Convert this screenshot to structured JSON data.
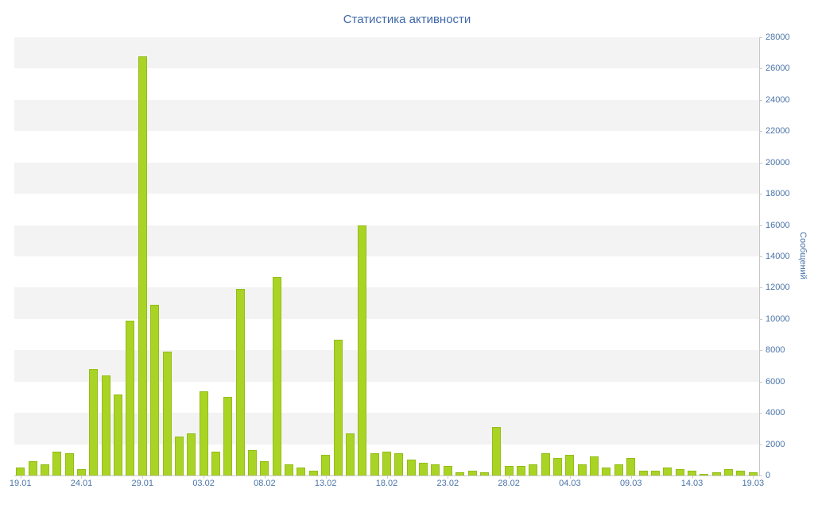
{
  "title": "Статистика активности",
  "chart_data": {
    "type": "bar",
    "title": "Статистика активности",
    "xlabel": "",
    "ylabel": "Сообщений",
    "ylim": [
      0,
      28000
    ],
    "y_tick_step": 2000,
    "y_ticks": [
      0,
      2000,
      4000,
      6000,
      8000,
      10000,
      12000,
      14000,
      16000,
      18000,
      20000,
      22000,
      24000,
      26000,
      28000
    ],
    "x_tick_indices": [
      0,
      5,
      10,
      15,
      20,
      25,
      30,
      35,
      40,
      45,
      50,
      55,
      60
    ],
    "grid": "alternating-horizontal-bands",
    "legend_position": "none",
    "bar_color": "#a9d426",
    "bar_border_color": "#93bd17",
    "band_color": "#f3f3f3",
    "text_color": "#4a74a8",
    "title_color": "#3f68a9",
    "axis_color": "#c9c9c9",
    "categories": [
      "19.01",
      "20.01",
      "21.01",
      "22.01",
      "23.01",
      "24.01",
      "25.01",
      "26.01",
      "27.01",
      "28.01",
      "29.01",
      "30.01",
      "31.01",
      "01.02",
      "02.02",
      "03.02",
      "04.02",
      "05.02",
      "06.02",
      "07.02",
      "08.02",
      "09.02",
      "10.02",
      "11.02",
      "12.02",
      "13.02",
      "14.02",
      "15.02",
      "16.02",
      "17.02",
      "18.02",
      "19.02",
      "20.02",
      "21.02",
      "22.02",
      "23.02",
      "24.02",
      "25.02",
      "26.02",
      "27.02",
      "28.02",
      "29.02",
      "01.03",
      "02.03",
      "03.03",
      "04.03",
      "05.03",
      "06.03",
      "07.03",
      "08.03",
      "09.03",
      "10.03",
      "11.03",
      "12.03",
      "13.03",
      "14.03",
      "15.03",
      "16.03",
      "17.03",
      "18.03",
      "19.03"
    ],
    "values": [
      500,
      900,
      700,
      1500,
      1400,
      400,
      6800,
      6400,
      5200,
      9900,
      26800,
      10900,
      7900,
      2500,
      2700,
      5400,
      1500,
      5000,
      11900,
      1600,
      900,
      12700,
      700,
      500,
      300,
      1300,
      8700,
      2700,
      16000,
      1400,
      1500,
      1400,
      1000,
      800,
      700,
      600,
      200,
      300,
      200,
      3100,
      600,
      600,
      700,
      1400,
      1100,
      1300,
      700,
      1200,
      500,
      700,
      1100,
      300,
      300,
      500,
      400,
      300,
      100,
      200,
      400,
      300,
      200
    ]
  }
}
